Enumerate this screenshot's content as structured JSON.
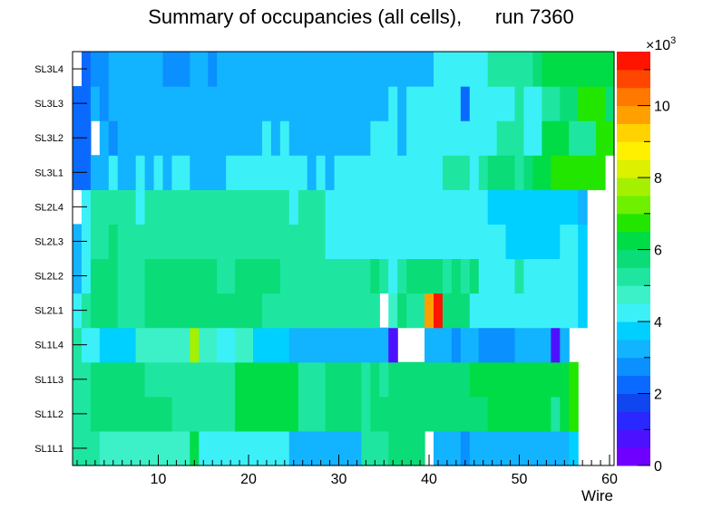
{
  "chart_data": {
    "type": "heatmap",
    "title": "Summary of occupancies (all cells),      run 7360",
    "xlabel": "Wire",
    "ylabel": "",
    "x_range": [
      0.5,
      60.5
    ],
    "x_ticks": [
      10,
      20,
      30,
      40,
      50,
      60
    ],
    "y_categories": [
      "SL1L1",
      "SL1L2",
      "SL1L3",
      "SL1L4",
      "SL2L1",
      "SL2L2",
      "SL2L3",
      "SL2L4",
      "SL3L1",
      "SL3L2",
      "SL3L3",
      "SL3L4"
    ],
    "z_range": [
      0,
      11500
    ],
    "z_ticks": [
      0,
      2,
      4,
      6,
      8,
      10
    ],
    "z_multiplier": "×10",
    "z_multiplier_exp": "3",
    "palette": [
      "#6f00ff",
      "#4c12ff",
      "#2828ff",
      "#1046f0",
      "#0a6aff",
      "#0a90ff",
      "#12b3ff",
      "#00d0ff",
      "#3cf0f8",
      "#3cf0c8",
      "#1ee6a0",
      "#0adc78",
      "#00dc46",
      "#22e600",
      "#6ef000",
      "#a4f000",
      "#dcf000",
      "#fff000",
      "#ffd200",
      "#ffa000",
      "#ff7800",
      "#ff4600",
      "#ff1400"
    ],
    "grid": false,
    "values": [
      [
        5.2,
        5.2,
        5.2,
        4.6,
        4.6,
        4.6,
        4.6,
        4.6,
        4.6,
        4.6,
        4.6,
        4.6,
        4.6,
        6.2,
        4.2,
        4.2,
        4.2,
        4.2,
        4.2,
        4.2,
        4.2,
        4.2,
        4.2,
        4.2,
        3.4,
        3.4,
        3.4,
        3.4,
        3.4,
        3.4,
        3.4,
        3.4,
        5.4,
        5.4,
        5.2,
        5.7,
        5.7,
        5.7,
        5.7,
        0,
        3.4,
        3.4,
        3.2,
        2.6,
        3.4,
        3.0,
        3.0,
        3.0,
        3.4,
        3.4,
        3.4,
        3.4,
        3.4,
        3.4,
        3.4,
        3.8,
        0,
        0,
        0,
        0
      ],
      [
        5.2,
        5.2,
        5.7,
        5.7,
        5.7,
        5.7,
        5.7,
        5.7,
        5.7,
        5.7,
        5.7,
        5.2,
        5.2,
        5.2,
        5.2,
        5.2,
        5.2,
        5.2,
        6.0,
        6.0,
        6.0,
        6.0,
        6.0,
        6.0,
        6.0,
        5.2,
        5.2,
        5.2,
        5.6,
        5.6,
        5.6,
        5.6,
        5.2,
        5.6,
        5.6,
        5.6,
        5.6,
        5.6,
        5.6,
        5.6,
        5.6,
        5.6,
        5.6,
        5.6,
        5.6,
        5.6,
        6.0,
        6.0,
        6.0,
        6.0,
        6.0,
        6.0,
        6.3,
        5.4,
        6.3,
        6.8,
        0,
        0,
        0,
        0
      ],
      [
        5.2,
        5.2,
        5.7,
        5.7,
        5.7,
        5.7,
        5.7,
        5.7,
        5.2,
        5.2,
        5.2,
        5.2,
        5.2,
        5.2,
        5.2,
        5.2,
        5.2,
        5.2,
        6.0,
        6.0,
        6.0,
        6.0,
        6.0,
        6.0,
        6.0,
        5.2,
        5.2,
        5.2,
        5.6,
        5.6,
        5.6,
        5.6,
        5.2,
        5.6,
        5.2,
        5.6,
        5.6,
        5.6,
        5.6,
        5.6,
        5.6,
        5.6,
        5.6,
        5.6,
        6.3,
        6.3,
        6.3,
        6.3,
        6.3,
        6.3,
        6.3,
        6.0,
        6.0,
        6.0,
        6.0,
        6.8,
        0,
        0,
        0,
        0
      ],
      [
        5.0,
        4.2,
        4.2,
        3.8,
        3.8,
        3.8,
        3.8,
        4.6,
        4.6,
        4.6,
        4.6,
        4.6,
        4.6,
        7.8,
        4.6,
        4.6,
        4.2,
        4.2,
        4.6,
        4.6,
        3.8,
        3.8,
        3.8,
        3.8,
        3.2,
        3.2,
        3.2,
        3.2,
        3.2,
        3.2,
        3.2,
        3.2,
        3.2,
        3.2,
        3.2,
        0.5,
        0,
        0,
        0,
        3.0,
        3.2,
        3.2,
        2.6,
        3.2,
        3.2,
        2.8,
        2.8,
        2.8,
        2.8,
        3.2,
        3.2,
        3.2,
        3.2,
        0.5,
        3.2,
        0,
        0,
        0,
        0,
        0
      ],
      [
        4.0,
        5.2,
        5.7,
        5.7,
        5.7,
        5.2,
        5.2,
        5.2,
        5.7,
        5.7,
        5.7,
        5.7,
        5.7,
        5.7,
        5.7,
        5.7,
        5.7,
        5.7,
        5.7,
        5.7,
        5.7,
        5.2,
        5.2,
        5.2,
        5.2,
        5.2,
        5.2,
        5.2,
        5.2,
        5.2,
        5.2,
        5.2,
        5.2,
        5.2,
        0,
        4.8,
        5.7,
        5.2,
        5.2,
        9.8,
        11.3,
        5.7,
        5.7,
        5.7,
        4.4,
        4.4,
        4.4,
        4.4,
        4.4,
        4.4,
        4.4,
        4.4,
        4.4,
        4.4,
        4.4,
        4.4,
        3.8,
        0,
        0,
        0
      ],
      [
        3.0,
        4.0,
        5.7,
        5.7,
        5.7,
        5.2,
        5.2,
        5.2,
        5.7,
        5.7,
        5.7,
        5.7,
        5.7,
        5.7,
        5.7,
        5.7,
        5.2,
        5.2,
        5.7,
        5.7,
        5.7,
        5.7,
        5.7,
        5.2,
        5.2,
        5.2,
        5.2,
        5.2,
        5.2,
        5.2,
        5.2,
        5.2,
        5.2,
        5.7,
        5.2,
        4.2,
        5.2,
        5.7,
        5.7,
        5.7,
        5.7,
        5.2,
        5.7,
        5.2,
        5.7,
        4.4,
        4.4,
        4.4,
        4.4,
        5.2,
        4.4,
        4.4,
        4.4,
        4.4,
        4.4,
        4.4,
        3.8,
        0,
        0,
        0
      ],
      [
        3.0,
        4.4,
        5.2,
        5.2,
        5.7,
        5.2,
        5.2,
        5.2,
        5.2,
        5.2,
        5.2,
        5.2,
        5.2,
        5.2,
        5.2,
        5.2,
        5.2,
        5.2,
        5.2,
        5.2,
        5.2,
        5.2,
        5.2,
        5.2,
        5.2,
        5.2,
        5.2,
        5.2,
        4.4,
        4.4,
        4.4,
        4.4,
        4.4,
        4.4,
        4.4,
        4.4,
        4.4,
        4.4,
        4.4,
        4.4,
        4.4,
        4.4,
        4.4,
        4.4,
        4.4,
        4.4,
        4.4,
        4.4,
        3.8,
        3.8,
        3.8,
        3.8,
        3.8,
        3.8,
        4.4,
        4.4,
        3.8,
        0,
        0,
        0
      ],
      [
        0,
        4.4,
        5.2,
        5.2,
        5.2,
        5.2,
        5.2,
        4.4,
        5.2,
        5.2,
        5.2,
        5.2,
        5.2,
        5.2,
        5.2,
        5.2,
        5.2,
        5.2,
        5.2,
        5.2,
        5.2,
        5.2,
        5.2,
        5.2,
        4.4,
        5.2,
        5.2,
        5.2,
        4.4,
        4.4,
        4.4,
        4.4,
        4.4,
        4.4,
        4.4,
        4.4,
        4.4,
        4.4,
        4.4,
        4.4,
        4.4,
        4.4,
        4.4,
        4.4,
        4.4,
        4.4,
        3.8,
        3.8,
        3.8,
        3.8,
        3.8,
        3.8,
        3.8,
        3.8,
        3.8,
        3.8,
        3.2,
        0,
        0,
        0
      ],
      [
        2.2,
        2.2,
        3.2,
        3.2,
        4.0,
        3.2,
        3.2,
        4.0,
        3.2,
        4.0,
        3.2,
        4.0,
        4.0,
        3.2,
        3.2,
        3.2,
        3.2,
        4.0,
        4.0,
        4.0,
        4.0,
        4.0,
        4.0,
        4.0,
        4.0,
        4.0,
        3.2,
        4.0,
        3.2,
        4.0,
        4.0,
        4.0,
        4.0,
        4.0,
        4.0,
        4.0,
        4.0,
        4.0,
        4.0,
        4.0,
        4.0,
        5.0,
        5.0,
        5.0,
        4.4,
        5.0,
        5.6,
        5.6,
        5.6,
        5.0,
        5.6,
        6.0,
        6.0,
        6.6,
        6.6,
        6.6,
        6.6,
        6.6,
        6.6,
        0
      ],
      [
        2.2,
        2.2,
        0,
        3.2,
        2.8,
        3.2,
        3.2,
        3.2,
        3.2,
        3.2,
        3.2,
        3.2,
        3.2,
        3.2,
        3.2,
        3.2,
        3.2,
        3.2,
        3.2,
        3.2,
        3.2,
        4.0,
        3.2,
        4.0,
        3.2,
        3.2,
        3.2,
        3.2,
        3.2,
        3.2,
        3.2,
        3.2,
        3.2,
        4.0,
        4.0,
        4.0,
        3.2,
        4.0,
        4.0,
        4.0,
        4.0,
        4.0,
        4.0,
        4.0,
        4.4,
        4.4,
        4.4,
        5.0,
        5.0,
        5.0,
        4.4,
        4.4,
        6.0,
        6.0,
        6.0,
        5.4,
        5.4,
        5.4,
        6.6,
        6.6
      ],
      [
        2.2,
        2.2,
        3.2,
        2.8,
        3.2,
        3.2,
        3.2,
        3.2,
        3.2,
        3.2,
        3.2,
        3.2,
        3.2,
        3.2,
        3.2,
        3.2,
        3.2,
        3.2,
        3.2,
        3.2,
        3.2,
        3.2,
        3.2,
        3.2,
        3.2,
        3.2,
        3.2,
        3.2,
        3.2,
        3.2,
        3.2,
        3.2,
        3.2,
        3.2,
        3.2,
        4.0,
        3.2,
        4.0,
        4.0,
        4.0,
        4.0,
        4.0,
        4.0,
        2.2,
        4.4,
        4.4,
        4.4,
        4.4,
        4.4,
        5.0,
        4.4,
        4.4,
        5.0,
        5.0,
        5.6,
        5.6,
        6.6,
        6.6,
        6.6,
        5.6
      ],
      [
        0,
        2.2,
        2.8,
        2.8,
        3.2,
        3.2,
        3.2,
        3.2,
        3.2,
        3.2,
        2.8,
        2.8,
        2.8,
        3.2,
        3.2,
        2.8,
        3.2,
        3.2,
        3.2,
        3.2,
        3.2,
        3.2,
        3.2,
        3.2,
        3.2,
        3.2,
        3.2,
        3.2,
        3.2,
        3.2,
        3.2,
        3.2,
        3.2,
        3.2,
        3.2,
        3.2,
        3.2,
        3.2,
        3.2,
        3.2,
        4.0,
        4.0,
        4.0,
        4.0,
        4.0,
        4.0,
        5.0,
        5.0,
        5.0,
        5.0,
        5.0,
        5.6,
        6.0,
        6.0,
        6.3,
        6.3,
        6.3,
        6.3,
        6.3,
        6.3
      ]
    ]
  }
}
